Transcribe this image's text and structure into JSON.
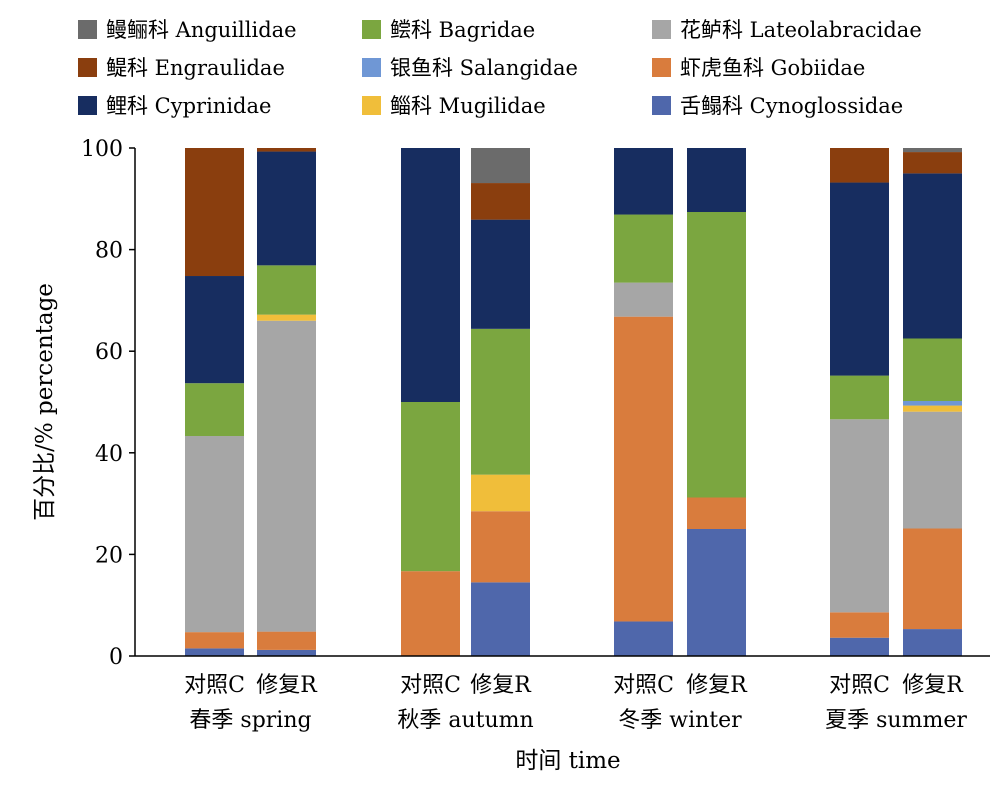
{
  "chart_data": {
    "type": "bar",
    "stacked": true,
    "xlabel": "时间 time",
    "ylabel": "百分比/% percentage",
    "ylim": [
      0,
      100
    ],
    "yticks": [
      0,
      20,
      40,
      60,
      80,
      100
    ],
    "grid": false,
    "legend_position": "top",
    "groups": [
      {
        "season": "春季 spring",
        "categories": [
          "对照C",
          "修复R"
        ]
      },
      {
        "season": "秋季 autumn",
        "categories": [
          "对照C",
          "修复R"
        ]
      },
      {
        "season": "冬季 winter",
        "categories": [
          "对照C",
          "修复R"
        ]
      },
      {
        "season": "夏季 summer",
        "categories": [
          "对照C",
          "修复R"
        ]
      }
    ],
    "series": [
      {
        "name": "舌鳎科 Cynoglossidae",
        "color": "#4F67AB",
        "values": [
          1.5,
          1.2,
          0,
          14.5,
          6.8,
          25,
          3.6,
          5.3
        ]
      },
      {
        "name": "虾虎鱼科 Gobiidae",
        "color": "#D97C3D",
        "values": [
          3.2,
          3.6,
          16.7,
          14,
          60,
          6.2,
          5,
          19.8
        ]
      },
      {
        "name": "花鲈科 Lateolabracidae",
        "color": "#A6A6A6",
        "values": [
          38.6,
          61.2,
          0,
          0,
          6.7,
          0,
          38,
          23
        ]
      },
      {
        "name": "鲻科 Mugilidae",
        "color": "#F0BE3A",
        "values": [
          0,
          1.2,
          0,
          7.2,
          0,
          0,
          0,
          1.2
        ]
      },
      {
        "name": "银鱼科 Salangidae",
        "color": "#6F97D5",
        "values": [
          0,
          0,
          0,
          0,
          0,
          0,
          0,
          0.9
        ]
      },
      {
        "name": "鲿科 Bagridae",
        "color": "#7BA640",
        "values": [
          10.4,
          9.7,
          33.3,
          28.7,
          13.4,
          56.2,
          8.6,
          12.3
        ]
      },
      {
        "name": "鲤科 Cyprinidae",
        "color": "#172D60",
        "values": [
          21.1,
          22.4,
          50,
          21.5,
          13.1,
          12.6,
          38,
          32.5
        ]
      },
      {
        "name": "鳀科 Engraulidae",
        "color": "#8A3E0E",
        "values": [
          25.2,
          0.7,
          0,
          7.2,
          0,
          0,
          6.8,
          4.2
        ]
      },
      {
        "name": "鳗鲡科 Anguillidae",
        "color": "#6B6B6B",
        "values": [
          0,
          0,
          0,
          6.9,
          0,
          0,
          0,
          0.8
        ]
      }
    ],
    "legend_order": [
      "鳗鲡科 Anguillidae",
      "鲿科 Bagridae",
      "花鲈科 Lateolabracidae",
      "鳀科 Engraulidae",
      "银鱼科 Salangidae",
      "虾虎鱼科 Gobiidae",
      "鲤科 Cyprinidae",
      "鲻科 Mugilidae",
      "舌鳎科 Cynoglossidae"
    ]
  }
}
